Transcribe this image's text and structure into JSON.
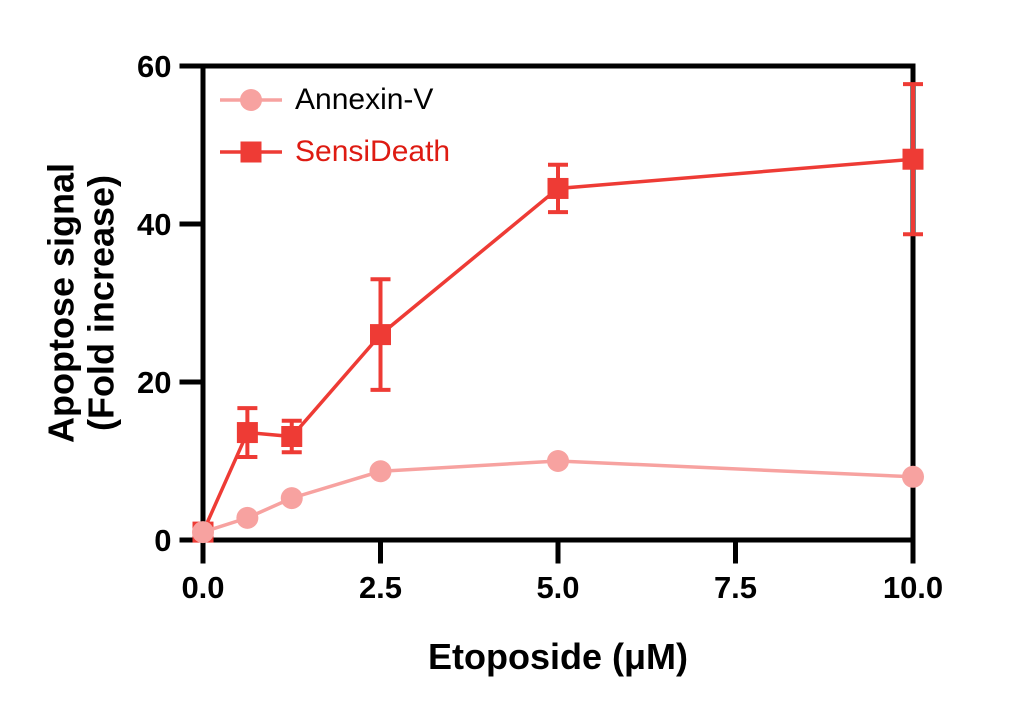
{
  "chart_data": {
    "type": "line",
    "title": "",
    "xlabel": "Etoposide (μM)",
    "ylabel": "Apoptose signal (Fold increase)",
    "ylabel_line1": "Apoptose signal",
    "ylabel_line2": "(Fold increase)",
    "xlim": [
      0,
      10
    ],
    "ylim": [
      0,
      60
    ],
    "grid": false,
    "frame": "full-box",
    "frame_color": "#000000",
    "background_color": "#ffffff",
    "legend_position": "top-left-inside",
    "x_ticks": {
      "values": [
        0,
        2.5,
        5,
        7.5,
        10
      ],
      "labels": [
        "0.0",
        "2.5",
        "5.0",
        "7.5",
        "10.0"
      ]
    },
    "y_ticks": {
      "values": [
        0,
        20,
        40,
        60
      ],
      "labels": [
        "0",
        "20",
        "40",
        "60"
      ]
    },
    "series": [
      {
        "name": "SensiDeath",
        "marker": "square",
        "color": "#EE3B35",
        "label_color": "#DE1B12",
        "x": [
          0,
          0.625,
          1.25,
          2.5,
          5,
          10
        ],
        "y": [
          1,
          13.6,
          13.1,
          26,
          44.5,
          48.2
        ],
        "yerr": [
          0,
          3.1,
          2.0,
          7.0,
          3.0,
          9.5
        ]
      },
      {
        "name": "Annexin-V",
        "marker": "circle",
        "color": "#F7A2A0",
        "label_color": "#000000",
        "x": [
          0,
          0.625,
          1.25,
          2.5,
          5,
          10
        ],
        "y": [
          1,
          2.8,
          5.3,
          8.7,
          10,
          8
        ],
        "yerr": [
          0,
          0,
          0,
          0,
          0,
          0
        ]
      }
    ],
    "legend": [
      {
        "label": "Annexin-V",
        "series_index": 1
      },
      {
        "label": "SensiDeath",
        "series_index": 0
      }
    ]
  }
}
